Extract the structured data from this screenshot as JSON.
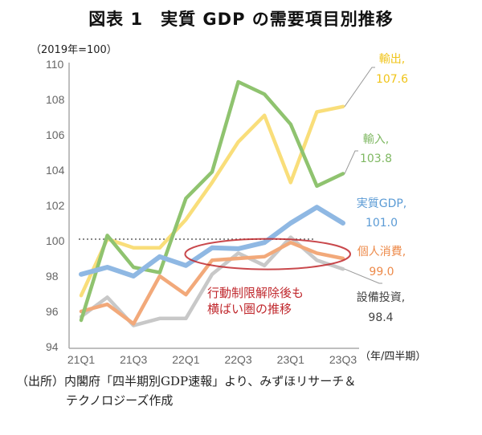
{
  "title": "図表 1　実質 GDP の需要項目別推移",
  "chart_data": {
    "type": "line",
    "title": "図表 1　実質 GDP の需要項目別推移",
    "ylabel": "（2019年=100）",
    "xlabel": "（年/四半期）",
    "ylim": [
      94,
      110
    ],
    "yticks": [
      94,
      96,
      98,
      100,
      102,
      104,
      106,
      108,
      110
    ],
    "x": [
      "21Q1",
      "21Q2",
      "21Q3",
      "21Q4",
      "22Q1",
      "22Q2",
      "22Q3",
      "22Q4",
      "23Q1",
      "23Q2",
      "23Q3"
    ],
    "xtick_labels": [
      "21Q1",
      "21Q3",
      "22Q1",
      "22Q3",
      "23Q1",
      "23Q3"
    ],
    "reference_line": {
      "value": 100,
      "from": "21Q1",
      "to": "23Q2",
      "style": "dotted"
    },
    "grid": false,
    "series": [
      {
        "name": "輸出",
        "end_label": "107.6",
        "color": "#f9de7a",
        "values": [
          96.9,
          100.1,
          99.6,
          99.6,
          101.2,
          103.3,
          105.6,
          107.1,
          103.3,
          107.3,
          107.6
        ]
      },
      {
        "name": "輸入",
        "end_label": "103.8",
        "color": "#8fc36f",
        "values": [
          95.5,
          100.3,
          98.5,
          98.2,
          102.4,
          103.9,
          109.0,
          108.3,
          106.6,
          103.1,
          103.8
        ]
      },
      {
        "name": "実質GDP",
        "end_label": "101.0",
        "color": "#8fb8e3",
        "values": [
          98.1,
          98.5,
          98.0,
          99.1,
          98.6,
          99.6,
          99.55,
          99.9,
          101.0,
          101.9,
          101.0
        ]
      },
      {
        "name": "個人消費",
        "end_label": "99.0",
        "color": "#f2a97a",
        "values": [
          96.0,
          96.4,
          95.3,
          98.0,
          96.95,
          98.9,
          99.0,
          99.1,
          99.9,
          99.3,
          99.0
        ]
      },
      {
        "name": "設備投資",
        "end_label": "98.4",
        "color": "#c8c8c8",
        "values": [
          95.7,
          96.8,
          95.2,
          95.6,
          95.6,
          98.1,
          99.3,
          98.6,
          100.2,
          98.9,
          98.4
        ]
      }
    ],
    "label_colors": {
      "輸出": "#f0c419",
      "輸入": "#7fb862",
      "実質GDP": "#5b9bd5",
      "個人消費": "#ed8a4a",
      "設備投資": "#444444"
    },
    "annotation": {
      "lines": [
        "行動制限解除後も",
        "横ばい圏の推移"
      ],
      "color": "#c0282d",
      "ellipse_around": [
        "22Q1",
        "23Q3"
      ],
      "ellipse_center_value": 99.2
    }
  },
  "source": {
    "line1": "（出所）内閣府「四半期別GDP速報」より、みずほリサーチ＆",
    "line2": "テクノロジーズ作成"
  }
}
